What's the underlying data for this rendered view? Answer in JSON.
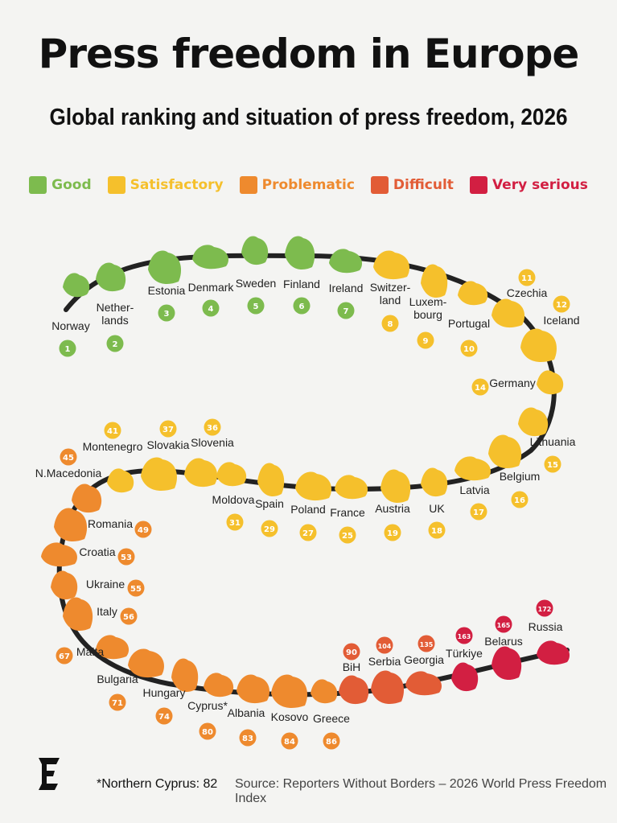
{
  "title": "Press freedom in Europe",
  "subtitle": "Global ranking and situation of press freedom, 2026",
  "legend": [
    {
      "label": "Good",
      "color": "#7dbb4e"
    },
    {
      "label": "Satisfactory",
      "color": "#f5c02c"
    },
    {
      "label": "Problematic",
      "color": "#ee8a2e"
    },
    {
      "label": "Difficult",
      "color": "#e25c36"
    },
    {
      "label": "Very serious",
      "color": "#d21f42"
    }
  ],
  "countries": [
    {
      "name": "Norway",
      "rank": "1",
      "status": "Good"
    },
    {
      "name": "Nether-\nlands",
      "rank": "2",
      "status": "Good"
    },
    {
      "name": "Estonia",
      "rank": "3",
      "status": "Good"
    },
    {
      "name": "Denmark",
      "rank": "4",
      "status": "Good"
    },
    {
      "name": "Sweden",
      "rank": "5",
      "status": "Good"
    },
    {
      "name": "Finland",
      "rank": "6",
      "status": "Good"
    },
    {
      "name": "Ireland",
      "rank": "7",
      "status": "Good"
    },
    {
      "name": "Switzer-\nland",
      "rank": "8",
      "status": "Satisfactory"
    },
    {
      "name": "Luxem-\nbourg",
      "rank": "9",
      "status": "Satisfactory"
    },
    {
      "name": "Portugal",
      "rank": "10",
      "status": "Satisfactory"
    },
    {
      "name": "Czechia",
      "rank": "11",
      "status": "Satisfactory"
    },
    {
      "name": "Iceland",
      "rank": "12",
      "status": "Satisfactory"
    },
    {
      "name": "Germany",
      "rank": "14",
      "status": "Satisfactory"
    },
    {
      "name": "Lithuania",
      "rank": "15",
      "status": "Satisfactory"
    },
    {
      "name": "Belgium",
      "rank": "16",
      "status": "Satisfactory"
    },
    {
      "name": "Latvia",
      "rank": "17",
      "status": "Satisfactory"
    },
    {
      "name": "UK",
      "rank": "18",
      "status": "Satisfactory"
    },
    {
      "name": "Austria",
      "rank": "19",
      "status": "Satisfactory"
    },
    {
      "name": "France",
      "rank": "25",
      "status": "Satisfactory"
    },
    {
      "name": "Poland",
      "rank": "27",
      "status": "Satisfactory"
    },
    {
      "name": "Spain",
      "rank": "29",
      "status": "Satisfactory"
    },
    {
      "name": "Moldova",
      "rank": "31",
      "status": "Satisfactory"
    },
    {
      "name": "Slovenia",
      "rank": "36",
      "status": "Satisfactory"
    },
    {
      "name": "Slovakia",
      "rank": "37",
      "status": "Satisfactory"
    },
    {
      "name": "Montenegro",
      "rank": "41",
      "status": "Satisfactory"
    },
    {
      "name": "N.Macedonia",
      "rank": "45",
      "status": "Problematic"
    },
    {
      "name": "Romania",
      "rank": "49",
      "status": "Problematic"
    },
    {
      "name": "Croatia",
      "rank": "53",
      "status": "Problematic"
    },
    {
      "name": "Ukraine",
      "rank": "55",
      "status": "Problematic"
    },
    {
      "name": "Italy",
      "rank": "56",
      "status": "Problematic"
    },
    {
      "name": "Malta",
      "rank": "67",
      "status": "Problematic"
    },
    {
      "name": "Bulgaria",
      "rank": "71",
      "status": "Problematic"
    },
    {
      "name": "Hungary",
      "rank": "74",
      "status": "Problematic"
    },
    {
      "name": "Cyprus*",
      "rank": "80",
      "status": "Problematic"
    },
    {
      "name": "Albania",
      "rank": "83",
      "status": "Problematic"
    },
    {
      "name": "Kosovo",
      "rank": "84",
      "status": "Problematic"
    },
    {
      "name": "Greece",
      "rank": "86",
      "status": "Problematic"
    },
    {
      "name": "BiH",
      "rank": "90",
      "status": "Difficult"
    },
    {
      "name": "Serbia",
      "rank": "104",
      "status": "Difficult"
    },
    {
      "name": "Georgia",
      "rank": "135",
      "status": "Difficult"
    },
    {
      "name": "Türkiye",
      "rank": "163",
      "status": "Very serious"
    },
    {
      "name": "Belarus",
      "rank": "165",
      "status": "Very serious"
    },
    {
      "name": "Russia",
      "rank": "172",
      "status": "Very serious"
    }
  ],
  "footnote": "*Northern Cyprus: 82",
  "source": "Source: Reporters Without Borders – 2026 World Press Freedom Index"
}
